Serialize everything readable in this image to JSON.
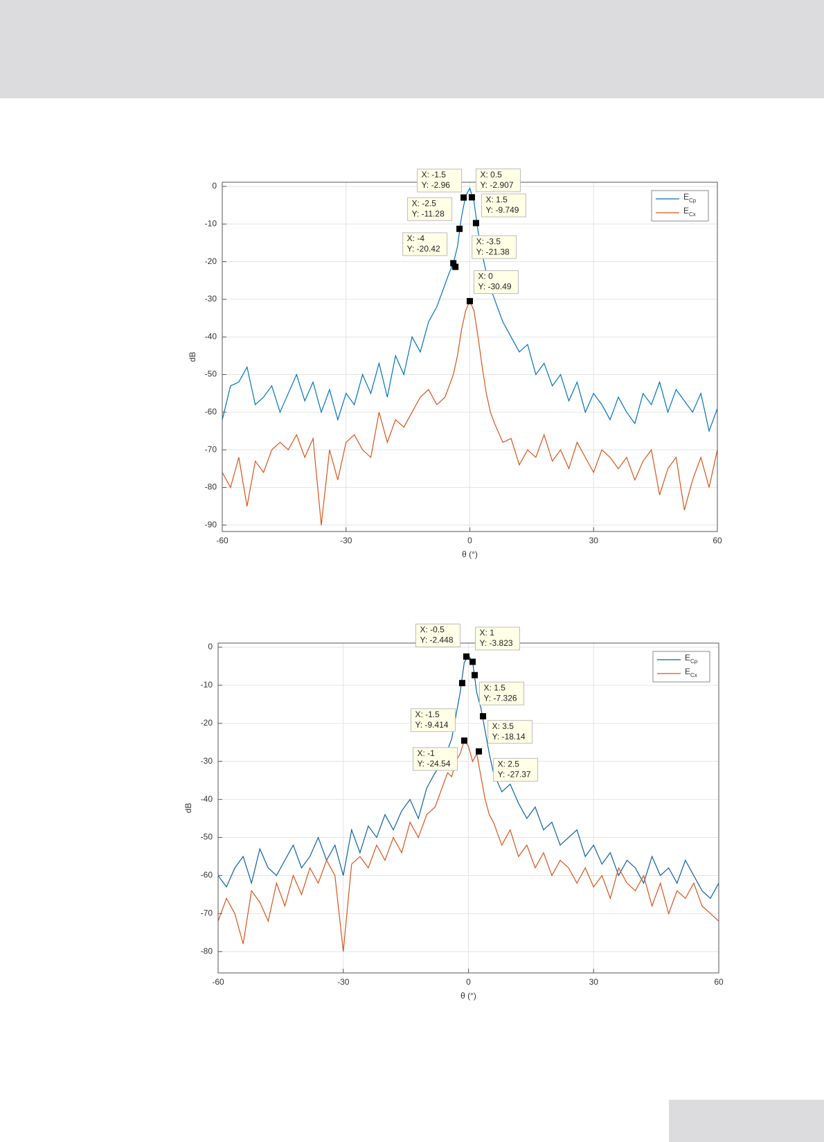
{
  "chart_data": [
    {
      "type": "line",
      "xlabel": "θ (°)",
      "ylabel": "dB",
      "xlim": [
        -60,
        60
      ],
      "xticks": [
        -60,
        -30,
        0,
        30,
        60
      ],
      "ylim": [
        -91.7,
        1.1
      ],
      "yticks": [
        0,
        -10,
        -20,
        -30,
        -40,
        -50,
        -60,
        -70,
        -80,
        -90
      ],
      "grid": true,
      "legend": "upper right",
      "x": [
        -60,
        -58,
        -56,
        -54,
        -52,
        -50,
        -48,
        -46,
        -44,
        -42,
        -40,
        -38,
        -36,
        -34,
        -32,
        -30,
        -28,
        -26,
        -24,
        -22,
        -20,
        -18,
        -16,
        -14,
        -12,
        -10,
        -8,
        -6,
        -5,
        -4,
        -3,
        -2,
        -1,
        0,
        1,
        2,
        3,
        4,
        5,
        6,
        8,
        10,
        12,
        14,
        16,
        18,
        20,
        22,
        24,
        26,
        28,
        30,
        32,
        34,
        36,
        38,
        40,
        42,
        44,
        46,
        48,
        50,
        52,
        54,
        56,
        58,
        60
      ],
      "series": [
        {
          "name": "ECp",
          "color": "#0072bd",
          "values": [
            -62,
            -53,
            -52,
            -48,
            -58,
            -56,
            -53,
            -60,
            -55,
            -50,
            -57,
            -52,
            -60,
            -54,
            -62,
            -55,
            -58,
            -50,
            -55,
            -47,
            -56,
            -45,
            -50,
            -40,
            -44,
            -36,
            -32,
            -26,
            -23,
            -20.5,
            -16,
            -8,
            -2.5,
            -0.5,
            -4,
            -12,
            -18,
            -23,
            -27,
            -30,
            -36,
            -40,
            -44,
            -42,
            -50,
            -47,
            -53,
            -50,
            -57,
            -52,
            -60,
            -55,
            -58,
            -62,
            -56,
            -60,
            -63,
            -55,
            -58,
            -52,
            -60,
            -54,
            -57,
            -60,
            -55,
            -65,
            -59
          ]
        },
        {
          "name": "ECx",
          "color": "#d95319",
          "values": [
            -76,
            -80,
            -72,
            -85,
            -73,
            -76,
            -70,
            -68,
            -70,
            -66,
            -72,
            -67,
            -90,
            -70,
            -78,
            -68,
            -66,
            -70,
            -72,
            -60,
            -68,
            -62,
            -64,
            -60,
            -56,
            -54,
            -58,
            -56,
            -53,
            -50,
            -45,
            -38,
            -33,
            -30.49,
            -33,
            -40,
            -48,
            -55,
            -60,
            -63,
            -68,
            -67,
            -74,
            -70,
            -72,
            -66,
            -73,
            -70,
            -75,
            -68,
            -72,
            -76,
            -70,
            -72,
            -75,
            -72,
            -78,
            -73,
            -70,
            -82,
            -75,
            -72,
            -86,
            -78,
            -72,
            -80,
            -70
          ]
        }
      ],
      "annotations": [
        {
          "x": -1.5,
          "y": -2.96,
          "text": [
            "X: -1.5",
            "Y: -2.96"
          ]
        },
        {
          "x": 0.5,
          "y": -2.907,
          "text": [
            "X: 0.5",
            "Y: -2.907"
          ]
        },
        {
          "x": -2.5,
          "y": -11.28,
          "text": [
            "X: -2.5",
            "Y: -11.28"
          ]
        },
        {
          "x": 1.5,
          "y": -9.749,
          "text": [
            "X: 1.5",
            "Y: -9.749"
          ]
        },
        {
          "x": -4,
          "y": -20.42,
          "text": [
            "X: -4",
            "Y: -20.42"
          ]
        },
        {
          "x": -3.5,
          "y": -21.38,
          "text": [
            "X: -3.5",
            "Y: -21.38"
          ]
        },
        {
          "x": 0,
          "y": -30.49,
          "text": [
            "X: 0",
            "Y: -30.49"
          ]
        }
      ]
    },
    {
      "type": "line",
      "xlabel": "θ (°)",
      "ylabel": "dB",
      "xlim": [
        -60,
        60
      ],
      "xticks": [
        -60,
        -30,
        0,
        30,
        60
      ],
      "ylim": [
        -85.6,
        1.1
      ],
      "yticks": [
        0,
        -10,
        -20,
        -30,
        -40,
        -50,
        -60,
        -70,
        -80
      ],
      "grid": true,
      "legend": "upper right",
      "x": [
        -60,
        -58,
        -56,
        -54,
        -52,
        -50,
        -48,
        -46,
        -44,
        -42,
        -40,
        -38,
        -36,
        -34,
        -32,
        -30,
        -28,
        -26,
        -24,
        -22,
        -20,
        -18,
        -16,
        -14,
        -12,
        -10,
        -8,
        -6,
        -5,
        -4,
        -3,
        -2,
        -1,
        0,
        1,
        2,
        3,
        4,
        5,
        6,
        8,
        10,
        12,
        14,
        16,
        18,
        20,
        22,
        24,
        26,
        28,
        30,
        32,
        34,
        36,
        38,
        40,
        42,
        44,
        46,
        48,
        50,
        52,
        54,
        56,
        58,
        60
      ],
      "series": [
        {
          "name": "ECp",
          "color": "#0b5fa5",
          "values": [
            -60,
            -63,
            -58,
            -55,
            -62,
            -53,
            -58,
            -60,
            -56,
            -52,
            -58,
            -55,
            -50,
            -56,
            -52,
            -60,
            -48,
            -54,
            -47,
            -50,
            -44,
            -48,
            -43,
            -40,
            -45,
            -37,
            -33,
            -30,
            -27,
            -24,
            -18,
            -12,
            -4,
            -2.2,
            -3.8,
            -12,
            -16,
            -22,
            -28,
            -33,
            -38,
            -36,
            -41,
            -45,
            -42,
            -48,
            -46,
            -52,
            -50,
            -48,
            -55,
            -52,
            -57,
            -54,
            -60,
            -56,
            -58,
            -62,
            -55,
            -60,
            -58,
            -62,
            -56,
            -60,
            -64,
            -66,
            -62
          ]
        },
        {
          "name": "ECx",
          "color": "#d95319",
          "values": [
            -72,
            -66,
            -70,
            -78,
            -64,
            -67,
            -72,
            -62,
            -68,
            -60,
            -65,
            -58,
            -62,
            -56,
            -60,
            -80,
            -57,
            -55,
            -58,
            -52,
            -56,
            -50,
            -54,
            -46,
            -50,
            -44,
            -42,
            -36,
            -33,
            -34,
            -30,
            -28,
            -24.54,
            -26,
            -30,
            -28,
            -34,
            -40,
            -44,
            -46,
            -52,
            -48,
            -55,
            -52,
            -58,
            -54,
            -60,
            -56,
            -58,
            -62,
            -58,
            -63,
            -60,
            -66,
            -58,
            -62,
            -64,
            -60,
            -68,
            -62,
            -70,
            -64,
            -66,
            -62,
            -68,
            -70,
            -72
          ]
        }
      ],
      "annotations": [
        {
          "x": -0.5,
          "y": -2.448,
          "text": [
            "X: -0.5",
            "Y: -2.448"
          ]
        },
        {
          "x": 1,
          "y": -3.823,
          "text": [
            "X: 1",
            "Y: -3.823"
          ]
        },
        {
          "x": -1.5,
          "y": -9.414,
          "text": [
            "X: -1.5",
            "Y: -9.414"
          ]
        },
        {
          "x": 1.5,
          "y": -7.326,
          "text": [
            "X: 1.5",
            "Y: -7.326"
          ]
        },
        {
          "x": 3.5,
          "y": -18.14,
          "text": [
            "X: 3.5",
            "Y: -18.14"
          ]
        },
        {
          "x": -1,
          "y": -24.54,
          "text": [
            "X: -1",
            "Y: -24.54"
          ]
        },
        {
          "x": 2.5,
          "y": -27.37,
          "text": [
            "X: 2.5",
            "Y: -27.37"
          ]
        }
      ]
    }
  ]
}
